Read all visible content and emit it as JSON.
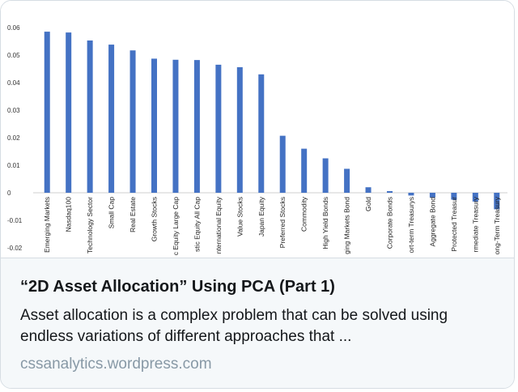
{
  "card": {
    "title": "“2D Asset Allocation” Using PCA (Part 1)",
    "description": "Asset allocation is a complex problem that can be solved using endless variations of different approaches that ...",
    "domain": "cssanalytics.wordpress.com"
  },
  "colors": {
    "bar": "#4472c4",
    "meta_bg": "#f5f8fa",
    "domain_text": "#8899a6"
  },
  "chart_data": {
    "type": "bar",
    "title": "",
    "xlabel": "",
    "ylabel": "",
    "grid": false,
    "ylim": [
      -0.02,
      0.06
    ],
    "yticks": [
      "0.06",
      "0.05",
      "0.04",
      "0.03",
      "0.02",
      "0.01",
      "0",
      "-0.01",
      "-0.02"
    ],
    "ytick_values": [
      0.06,
      0.05,
      0.04,
      0.03,
      0.02,
      0.01,
      0,
      -0.01,
      -0.02
    ],
    "categories": [
      "Emerging Markets",
      "Nasdaq100",
      "Technology Sector",
      "Small Cap",
      "Real Estate",
      "Growth Stocks",
      "c Equity Large Cap",
      "stic Equity All Cap",
      "nternational Equity",
      "Value Stocks",
      "Japan Equity",
      "Preferred Stocks",
      "Commodity",
      "High Yield Bonds",
      "ging Markets Bond",
      "Gold",
      "Corporate Bonds",
      "ort-term Treasurys",
      "Aggregate Bond",
      "Protected Treasur",
      "rmediate Treasury",
      "ong-Term Treasury"
    ],
    "values": [
      0.0585,
      0.0582,
      0.0553,
      0.0538,
      0.0517,
      0.0487,
      0.0483,
      0.0482,
      0.0465,
      0.0456,
      0.043,
      0.0207,
      0.016,
      0.0125,
      0.0087,
      0.002,
      0.0006,
      -0.001,
      -0.0017,
      -0.0025,
      -0.0032,
      -0.006
    ]
  }
}
